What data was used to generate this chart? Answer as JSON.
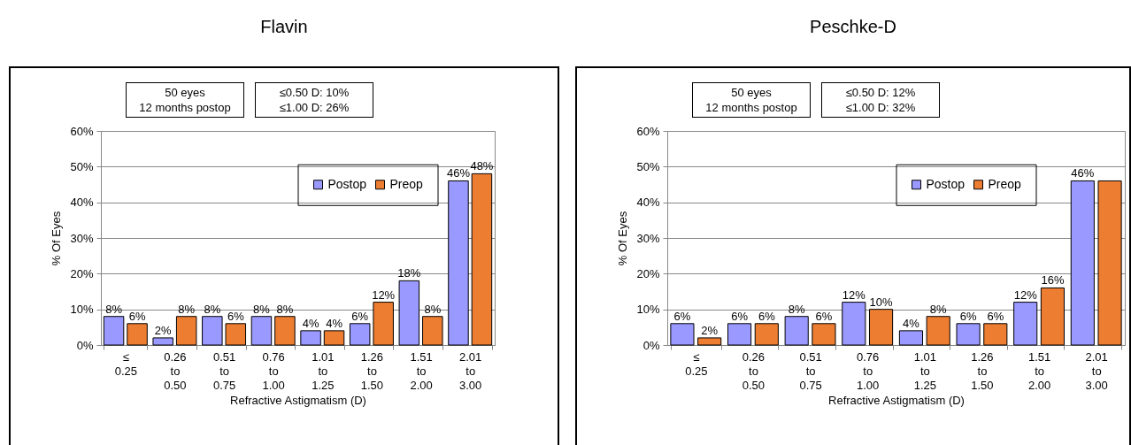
{
  "chart_data": [
    {
      "type": "bar",
      "title": "Flavin",
      "xlabel": "Refractive Astigmatism (D)",
      "ylabel": "% Of Eyes",
      "categories": [
        "≤\n0.25",
        "0.26\nto\n0.50",
        "0.51\nto\n0.75",
        "0.76\nto\n1.00",
        "1.01\nto\n1.25",
        "1.26\nto\n1.50",
        "1.51\nto\n2.00",
        "2.01\nto\n3.00"
      ],
      "series": [
        {
          "name": "Postop",
          "color": "#9999ff",
          "values": [
            8,
            2,
            8,
            8,
            4,
            6,
            18,
            46
          ],
          "value_labels": [
            "8%",
            "2%",
            "8%",
            "8%",
            "4%",
            "6%",
            "18%",
            "46%"
          ]
        },
        {
          "name": "Preop",
          "color": "#ed7d31",
          "values": [
            6,
            8,
            6,
            8,
            4,
            12,
            8,
            48
          ],
          "value_labels": [
            "6%",
            "8%",
            "6%",
            "8%",
            "4%",
            "12%",
            "8%",
            "48%"
          ]
        }
      ],
      "ylim": [
        0,
        60
      ],
      "yticks": [
        {
          "value": 0,
          "label": "0%"
        },
        {
          "value": 10,
          "label": "10%"
        },
        {
          "value": 20,
          "label": "20%"
        },
        {
          "value": 30,
          "label": "30%"
        },
        {
          "value": 40,
          "label": "40%"
        },
        {
          "value": 50,
          "label": "50%"
        },
        {
          "value": 60,
          "label": "60%"
        }
      ],
      "grid": "y",
      "legend": "top right",
      "annotations": [
        "50 eyes\n12 months postop",
        "≤0.50 D: 10%\n≤1.00 D: 26%"
      ]
    },
    {
      "type": "bar",
      "title": "Peschke-D",
      "xlabel": "Refractive Astigmatism (D)",
      "ylabel": "% Of Eyes",
      "categories": [
        "≤\n0.25",
        "0.26\nto\n0.50",
        "0.51\nto\n0.75",
        "0.76\nto\n1.00",
        "1.01\nto\n1.25",
        "1.26\nto\n1.50",
        "1.51\nto\n2.00",
        "2.01\nto\n3.00"
      ],
      "series": [
        {
          "name": "Postop",
          "color": "#9999ff",
          "values": [
            6,
            6,
            8,
            12,
            4,
            6,
            12,
            46
          ],
          "value_labels": [
            "6%",
            "6%",
            "8%",
            "12%",
            "4%",
            "6%",
            "12%",
            "46%"
          ]
        },
        {
          "name": "Preop",
          "color": "#ed7d31",
          "values": [
            2,
            6,
            6,
            10,
            8,
            6,
            16,
            46
          ],
          "value_labels": [
            "2%",
            "6%",
            "6%",
            "10%",
            "8%",
            "6%",
            "16%",
            null
          ]
        }
      ],
      "ylim": [
        0,
        60
      ],
      "yticks": [
        {
          "value": 0,
          "label": "0%"
        },
        {
          "value": 10,
          "label": "10%"
        },
        {
          "value": 20,
          "label": "20%"
        },
        {
          "value": 30,
          "label": "30%"
        },
        {
          "value": 40,
          "label": "40%"
        },
        {
          "value": 50,
          "label": "50%"
        },
        {
          "value": 60,
          "label": "60%"
        }
      ],
      "grid": "y",
      "legend": "top right",
      "annotations": [
        "50 eyes\n12 months postop",
        "≤0.50 D: 12%\n≤1.00 D: 32%"
      ]
    }
  ]
}
